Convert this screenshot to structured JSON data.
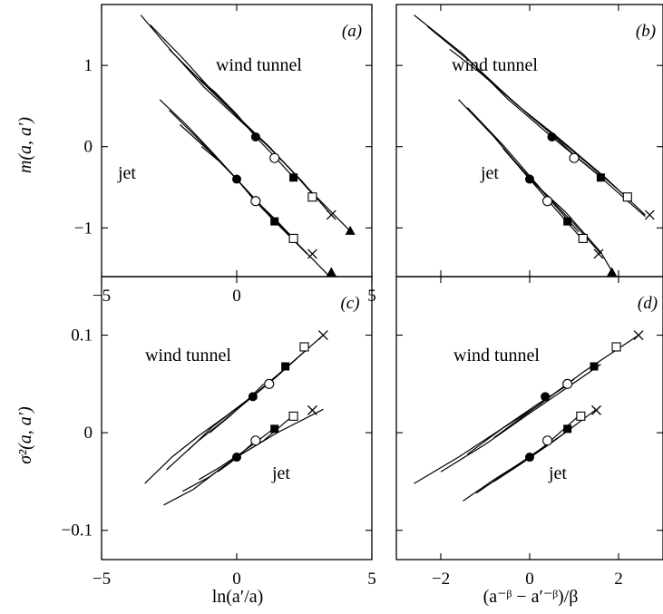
{
  "figure": {
    "ylabel_top": "m(a, a′)",
    "ylabel_bottom": "σ²(a, a′)",
    "xlabel_left": "ln(a′/a)",
    "xlabel_right": "(a⁻ᵝ − a′⁻ᵝ)/β"
  },
  "chart_data": [
    {
      "type": "line",
      "panel": "(a)",
      "xlim": [
        -5,
        5
      ],
      "ylim": [
        -1.6,
        1.75
      ],
      "xticks": [
        "−5",
        "0",
        "5"
      ],
      "yticks": [
        "1",
        "0",
        "−1"
      ],
      "annotations": [
        "wind tunnel",
        "jet"
      ],
      "series": [
        {
          "group": "wind tunnel",
          "curve": [
            [
              -3.55,
              1.62
            ],
            [
              -2.4,
              1.17
            ],
            [
              -1.2,
              0.73
            ],
            [
              0,
              0.36
            ],
            [
              1.2,
              -0.01
            ],
            [
              2.4,
              -0.42
            ],
            [
              3.55,
              -0.86
            ]
          ]
        },
        {
          "group": "wind tunnel",
          "curve": [
            [
              -3.2,
              1.5
            ],
            [
              -2,
              1.09
            ],
            [
              -1,
              0.72
            ],
            [
              0,
              0.38
            ],
            [
              1.2,
              0.0
            ],
            [
              2.6,
              -0.5
            ],
            [
              4.2,
              -1.04
            ]
          ]
        },
        {
          "group": "wind tunnel",
          "curve": [
            [
              -2.5,
              1.2
            ],
            [
              -1.3,
              0.8
            ],
            [
              0,
              0.38
            ],
            [
              1,
              0.06
            ],
            [
              2,
              -0.28
            ],
            [
              2.9,
              -0.62
            ]
          ]
        },
        {
          "group": "wind tunnel",
          "curve": [
            [
              -1.8,
              0.95
            ],
            [
              -0.8,
              0.67
            ],
            [
              0,
              0.4
            ],
            [
              0.7,
              0.12
            ],
            [
              1.4,
              -0.12
            ],
            [
              2.1,
              -0.38
            ]
          ]
        },
        {
          "group": "jet",
          "curve": [
            [
              -2.85,
              0.58
            ],
            [
              -1.9,
              0.28
            ],
            [
              -0.9,
              -0.07
            ],
            [
              0,
              -0.4
            ],
            [
              1.2,
              -0.85
            ],
            [
              2.6,
              -1.32
            ]
          ]
        },
        {
          "group": "jet",
          "curve": [
            [
              -2.5,
              0.45
            ],
            [
              -1.5,
              0.12
            ],
            [
              0,
              -0.4
            ],
            [
              1.3,
              -0.87
            ],
            [
              2.5,
              -1.28
            ],
            [
              3.5,
              -1.62
            ]
          ]
        },
        {
          "group": "jet",
          "curve": [
            [
              -2.1,
              0.27
            ],
            [
              -1,
              -0.06
            ],
            [
              0,
              -0.4
            ],
            [
              0.7,
              -0.66
            ],
            [
              1.5,
              -0.92
            ],
            [
              2.1,
              -1.13
            ]
          ]
        },
        {
          "group": "jet",
          "curve": [
            [
              -1.3,
              0.0
            ],
            [
              -0.5,
              -0.22
            ],
            [
              0,
              -0.4
            ],
            [
              0.5,
              -0.6
            ],
            [
              1.0,
              -0.78
            ],
            [
              1.5,
              -0.94
            ]
          ]
        }
      ],
      "markers": [
        {
          "shape": "filled-circle",
          "x": 0.7,
          "y": 0.12
        },
        {
          "shape": "open-circle",
          "x": 1.4,
          "y": -0.14
        },
        {
          "shape": "filled-square",
          "x": 2.1,
          "y": -0.38
        },
        {
          "shape": "open-square",
          "x": 2.8,
          "y": -0.62
        },
        {
          "shape": "cross",
          "x": 3.5,
          "y": -0.84
        },
        {
          "shape": "triangle",
          "x": 4.2,
          "y": -1.04
        },
        {
          "shape": "filled-circle",
          "x": 0.0,
          "y": -0.4
        },
        {
          "shape": "open-circle",
          "x": 0.7,
          "y": -0.67
        },
        {
          "shape": "filled-square",
          "x": 1.4,
          "y": -0.92
        },
        {
          "shape": "open-square",
          "x": 2.1,
          "y": -1.13
        },
        {
          "shape": "cross",
          "x": 2.8,
          "y": -1.32
        },
        {
          "shape": "triangle",
          "x": 3.5,
          "y": -1.55
        }
      ]
    },
    {
      "type": "line",
      "panel": "(b)",
      "xlim": [
        -3,
        3
      ],
      "ylim": [
        -1.6,
        1.75
      ],
      "xticks": [],
      "yticks": [],
      "annotations": [
        "wind tunnel",
        "jet"
      ],
      "series": [
        {
          "group": "wind tunnel",
          "curve": [
            [
              -2.6,
              1.62
            ],
            [
              -1.5,
              1.14
            ],
            [
              -0.5,
              0.59
            ],
            [
              0.5,
              0.12
            ],
            [
              1.5,
              -0.33
            ],
            [
              2.6,
              -0.86
            ]
          ]
        },
        {
          "group": "wind tunnel",
          "curve": [
            [
              -2.3,
              1.48
            ],
            [
              -1.3,
              1.03
            ],
            [
              -0.3,
              0.52
            ],
            [
              0.6,
              0.13
            ],
            [
              1.7,
              -0.38
            ],
            [
              2.6,
              -0.84
            ]
          ]
        },
        {
          "group": "wind tunnel",
          "curve": [
            [
              -1.8,
              1.2
            ],
            [
              -0.9,
              0.82
            ],
            [
              0,
              0.38
            ],
            [
              0.9,
              -0.02
            ],
            [
              1.8,
              -0.44
            ],
            [
              2.3,
              -0.68
            ]
          ]
        },
        {
          "group": "wind tunnel",
          "curve": [
            [
              -1.2,
              0.95
            ],
            [
              -0.4,
              0.57
            ],
            [
              0.4,
              0.2
            ],
            [
              1.0,
              -0.1
            ],
            [
              1.6,
              -0.37
            ]
          ]
        },
        {
          "group": "jet",
          "curve": [
            [
              -1.6,
              0.58
            ],
            [
              -0.8,
              0.12
            ],
            [
              0,
              -0.4
            ],
            [
              0.8,
              -0.8
            ],
            [
              1.6,
              -1.3
            ],
            [
              1.9,
              -1.58
            ]
          ]
        },
        {
          "group": "jet",
          "curve": [
            [
              -1.4,
              0.48
            ],
            [
              -0.6,
              0.02
            ],
            [
              0.3,
              -0.55
            ],
            [
              1.0,
              -0.95
            ],
            [
              1.6,
              -1.32
            ]
          ]
        },
        {
          "group": "jet",
          "curve": [
            [
              -1.0,
              0.25
            ],
            [
              -0.3,
              -0.2
            ],
            [
              0.4,
              -0.62
            ],
            [
              1.1,
              -1.05
            ]
          ]
        },
        {
          "group": "jet",
          "curve": [
            [
              -0.6,
              -0.02
            ],
            [
              0,
              -0.4
            ],
            [
              0.6,
              -0.78
            ],
            [
              1.2,
              -1.15
            ]
          ]
        }
      ],
      "markers": [
        {
          "shape": "filled-circle",
          "x": 0.5,
          "y": 0.12
        },
        {
          "shape": "open-circle",
          "x": 1.0,
          "y": -0.14
        },
        {
          "shape": "filled-square",
          "x": 1.6,
          "y": -0.38
        },
        {
          "shape": "open-square",
          "x": 2.2,
          "y": -0.62
        },
        {
          "shape": "cross",
          "x": 2.7,
          "y": -0.84
        },
        {
          "shape": "filled-circle",
          "x": 0.0,
          "y": -0.4
        },
        {
          "shape": "open-circle",
          "x": 0.4,
          "y": -0.67
        },
        {
          "shape": "filled-square",
          "x": 0.85,
          "y": -0.92
        },
        {
          "shape": "open-square",
          "x": 1.2,
          "y": -1.13
        },
        {
          "shape": "cross",
          "x": 1.55,
          "y": -1.32
        },
        {
          "shape": "triangle",
          "x": 1.85,
          "y": -1.55
        }
      ]
    },
    {
      "type": "line",
      "panel": "(c)",
      "xlim": [
        -5,
        5
      ],
      "ylim": [
        -0.13,
        0.16
      ],
      "xticks": [
        "−5",
        "0",
        "5"
      ],
      "yticks": [
        "0.1",
        "0",
        "−0.1"
      ],
      "annotations": [
        "wind tunnel",
        "jet"
      ],
      "series": [
        {
          "group": "wind tunnel",
          "curve": [
            [
              -3.4,
              -0.052
            ],
            [
              -2.4,
              -0.025
            ],
            [
              -1.4,
              -0.003
            ],
            [
              -0.4,
              0.017
            ],
            [
              0.6,
              0.038
            ],
            [
              1.8,
              0.066
            ],
            [
              3.2,
              0.1
            ]
          ]
        },
        {
          "group": "wind tunnel",
          "curve": [
            [
              -2.6,
              -0.038
            ],
            [
              -1.5,
              -0.01
            ],
            [
              -0.5,
              0.012
            ],
            [
              0.5,
              0.035
            ],
            [
              1.5,
              0.058
            ],
            [
              2.7,
              0.088
            ]
          ]
        },
        {
          "group": "wind tunnel",
          "curve": [
            [
              -1.8,
              -0.018
            ],
            [
              -0.9,
              0.006
            ],
            [
              0,
              0.025
            ],
            [
              0.8,
              0.042
            ],
            [
              1.5,
              0.058
            ]
          ]
        },
        {
          "group": "wind tunnel",
          "curve": [
            [
              -1.0,
              0.0
            ],
            [
              -0.3,
              0.016
            ],
            [
              0.3,
              0.031
            ],
            [
              1.0,
              0.05
            ]
          ]
        },
        {
          "group": "jet",
          "curve": [
            [
              -2.7,
              -0.074
            ],
            [
              -1.6,
              -0.058
            ],
            [
              -0.6,
              -0.037
            ],
            [
              0,
              -0.025
            ],
            [
              1.5,
              0.0
            ],
            [
              3.2,
              0.024
            ]
          ]
        },
        {
          "group": "jet",
          "curve": [
            [
              -2.0,
              -0.06
            ],
            [
              -1.0,
              -0.045
            ],
            [
              0,
              -0.025
            ],
            [
              1.0,
              -0.008
            ],
            [
              2.1,
              0.018
            ]
          ]
        },
        {
          "group": "jet",
          "curve": [
            [
              -1.4,
              -0.048
            ],
            [
              -0.6,
              -0.035
            ],
            [
              0.2,
              -0.02
            ],
            [
              0.8,
              -0.008
            ],
            [
              1.4,
              0.005
            ]
          ]
        },
        {
          "group": "jet",
          "curve": [
            [
              -0.7,
              -0.04
            ],
            [
              -0.2,
              -0.03
            ],
            [
              0.3,
              -0.018
            ],
            [
              0.7,
              -0.008
            ]
          ]
        }
      ],
      "markers": [
        {
          "shape": "filled-circle",
          "x": 0.6,
          "y": 0.037
        },
        {
          "shape": "open-circle",
          "x": 1.2,
          "y": 0.05
        },
        {
          "shape": "filled-square",
          "x": 1.8,
          "y": 0.068
        },
        {
          "shape": "open-square",
          "x": 2.5,
          "y": 0.088
        },
        {
          "shape": "cross",
          "x": 3.2,
          "y": 0.1
        },
        {
          "shape": "filled-circle",
          "x": 0.0,
          "y": -0.025
        },
        {
          "shape": "open-circle",
          "x": 0.7,
          "y": -0.008
        },
        {
          "shape": "filled-square",
          "x": 1.4,
          "y": 0.004
        },
        {
          "shape": "open-square",
          "x": 2.1,
          "y": 0.017
        },
        {
          "shape": "cross",
          "x": 2.8,
          "y": 0.023
        }
      ]
    },
    {
      "type": "line",
      "panel": "(d)",
      "xlim": [
        -3,
        3
      ],
      "ylim": [
        -0.13,
        0.16
      ],
      "xticks": [
        "−2",
        "0",
        "2"
      ],
      "yticks": [],
      "annotations": [
        "wind tunnel",
        "jet"
      ],
      "series": [
        {
          "group": "wind tunnel",
          "curve": [
            [
              -2.6,
              -0.052
            ],
            [
              -1.6,
              -0.025
            ],
            [
              -0.7,
              0.002
            ],
            [
              0.2,
              0.028
            ],
            [
              1.2,
              0.062
            ],
            [
              2.45,
              0.1
            ]
          ]
        },
        {
          "group": "wind tunnel",
          "curve": [
            [
              -2.0,
              -0.04
            ],
            [
              -1.0,
              -0.012
            ],
            [
              0,
              0.02
            ],
            [
              0.9,
              0.048
            ],
            [
              1.6,
              0.07
            ]
          ]
        },
        {
          "group": "wind tunnel",
          "curve": [
            [
              -1.4,
              -0.022
            ],
            [
              -0.6,
              0.005
            ],
            [
              0.2,
              0.03
            ],
            [
              0.9,
              0.05
            ]
          ]
        },
        {
          "group": "wind tunnel",
          "curve": [
            [
              -0.8,
              -0.005
            ],
            [
              -0.2,
              0.015
            ],
            [
              0.4,
              0.035
            ],
            [
              1.0,
              0.055
            ]
          ]
        },
        {
          "group": "jet",
          "curve": [
            [
              -1.5,
              -0.07
            ],
            [
              -0.8,
              -0.048
            ],
            [
              0,
              -0.025
            ],
            [
              0.8,
              0.0
            ],
            [
              1.5,
              0.024
            ]
          ]
        },
        {
          "group": "jet",
          "curve": [
            [
              -1.2,
              -0.062
            ],
            [
              -0.5,
              -0.04
            ],
            [
              0.3,
              -0.015
            ],
            [
              1.1,
              0.017
            ]
          ]
        },
        {
          "group": "jet",
          "curve": [
            [
              -0.8,
              -0.05
            ],
            [
              -0.2,
              -0.032
            ],
            [
              0.5,
              -0.01
            ],
            [
              0.95,
              0.005
            ]
          ]
        },
        {
          "group": "jet",
          "curve": [
            [
              -0.4,
              -0.038
            ],
            [
              0.1,
              -0.022
            ],
            [
              0.5,
              -0.008
            ]
          ]
        }
      ],
      "markers": [
        {
          "shape": "filled-circle",
          "x": 0.35,
          "y": 0.037
        },
        {
          "shape": "open-circle",
          "x": 0.85,
          "y": 0.05
        },
        {
          "shape": "filled-square",
          "x": 1.45,
          "y": 0.068
        },
        {
          "shape": "open-square",
          "x": 1.95,
          "y": 0.088
        },
        {
          "shape": "cross",
          "x": 2.45,
          "y": 0.1
        },
        {
          "shape": "filled-circle",
          "x": 0.0,
          "y": -0.025
        },
        {
          "shape": "open-circle",
          "x": 0.4,
          "y": -0.008
        },
        {
          "shape": "filled-square",
          "x": 0.85,
          "y": 0.004
        },
        {
          "shape": "open-square",
          "x": 1.15,
          "y": 0.017
        },
        {
          "shape": "cross",
          "x": 1.5,
          "y": 0.023
        }
      ]
    }
  ]
}
